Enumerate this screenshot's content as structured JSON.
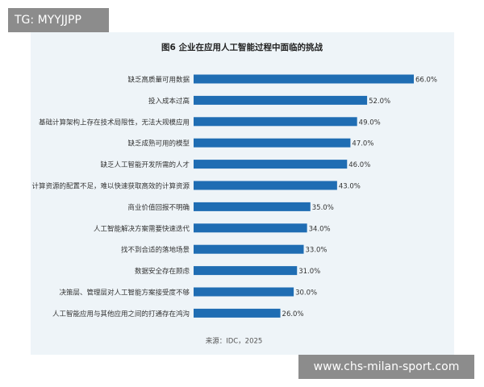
{
  "chart_data": {
    "type": "bar",
    "orientation": "horizontal",
    "title": "图6 企业在应用人工智能过程中面临的挑战",
    "categories": [
      "缺乏高质量可用数据",
      "投入成本过高",
      "基础计算架构上存在技术局限性，无法大规模应用",
      "缺乏成熟可用的模型",
      "缺乏人工智能开发所需的人才",
      "计算资源的配置不足，难以快速获取高效的计算资源",
      "商业价值回报不明确",
      "人工智能解决方案需要快速迭代",
      "找不到合适的落地场景",
      "数据安全存在顾虑",
      "决策层、管理层对人工智能方案接受度不够",
      "人工智能应用与其他应用之间的打通存在鸿沟"
    ],
    "values": [
      66,
      52,
      49,
      47,
      46,
      43,
      35,
      34,
      33,
      31,
      30,
      26
    ],
    "value_labels": [
      "66.0%",
      "52.0%",
      "49.0%",
      "47.0%",
      "46.0%",
      "43.0%",
      "35.0%",
      "34.0%",
      "33.0%",
      "31.0%",
      "30.0%",
      "26.0%"
    ],
    "color": "#1f6db3",
    "source": "来源：IDC，2025"
  },
  "watermarks": [
    "TG: MYYJJPP",
    "www.chs-milan-sport.com"
  ]
}
